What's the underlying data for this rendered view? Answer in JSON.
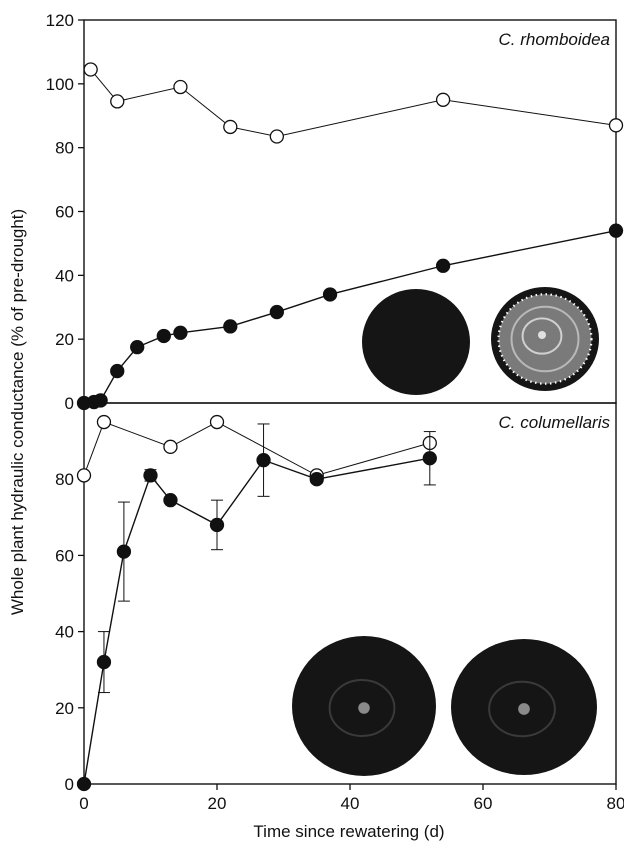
{
  "figure": {
    "ylabel": "Whole plant hydraulic conductance (% of pre-drought)",
    "xlabel": "Time since rewatering (d)",
    "colors": {
      "axis": "#111111",
      "line": "#111111",
      "filled_marker": "#111111",
      "open_marker_fill": "#ffffff",
      "stem_section": "#151515"
    }
  },
  "chart_data": [
    {
      "type": "line",
      "title": "C. rhomboidea",
      "panel": "top",
      "xlim": [
        0,
        80
      ],
      "ylim": [
        0,
        120
      ],
      "xticks": [],
      "yticks": [
        0,
        20,
        40,
        60,
        80,
        100,
        120
      ],
      "grid": false,
      "series": [
        {
          "marker": "open-circle",
          "points": [
            [
              1,
              104.5
            ],
            [
              5,
              94.5
            ],
            [
              14.5,
              99
            ],
            [
              22,
              86.5
            ],
            [
              29,
              83.5
            ],
            [
              54,
              95
            ],
            [
              80,
              87
            ]
          ]
        },
        {
          "marker": "filled-circle",
          "points": [
            [
              0,
              0
            ],
            [
              1.5,
              0.3
            ],
            [
              2.5,
              0.8
            ],
            [
              5,
              10
            ],
            [
              8,
              17.5
            ],
            [
              12,
              21
            ],
            [
              14.5,
              22
            ],
            [
              22,
              24
            ],
            [
              29,
              28.5
            ],
            [
              37,
              34
            ],
            [
              54,
              43
            ],
            [
              80,
              54
            ]
          ]
        }
      ],
      "insets": [
        {
          "name": "stem-section-dark",
          "rings": false,
          "dotted_ring": false
        },
        {
          "name": "stem-section-light-center",
          "rings": true,
          "dotted_ring": true
        }
      ]
    },
    {
      "type": "line",
      "title": "C. columellaris",
      "panel": "bottom",
      "xlim": [
        0,
        80
      ],
      "ylim": [
        0,
        100
      ],
      "xticks": [
        0,
        20,
        40,
        60,
        80
      ],
      "yticks": [
        0,
        20,
        40,
        60,
        80
      ],
      "grid": false,
      "series": [
        {
          "marker": "open-circle",
          "points": [
            [
              0,
              81
            ],
            [
              3,
              95
            ],
            [
              13,
              88.5
            ],
            [
              20,
              95
            ],
            [
              35,
              81
            ],
            [
              52,
              89.5
            ]
          ]
        },
        {
          "marker": "filled-circle",
          "points": [
            [
              0,
              0
            ],
            [
              3,
              32
            ],
            [
              6,
              61
            ],
            [
              10,
              81
            ],
            [
              13,
              74.5
            ],
            [
              20,
              68
            ],
            [
              27,
              85
            ],
            [
              35,
              80
            ],
            [
              52,
              85.5
            ]
          ],
          "error": [
            0,
            8,
            13,
            1.5,
            0,
            6.5,
            9.5,
            1,
            7
          ]
        }
      ],
      "insets": [
        {
          "name": "stem-section-dark",
          "rings": true,
          "dotted_ring": false
        },
        {
          "name": "stem-section-small-light-center",
          "rings": true,
          "dotted_ring": false
        }
      ]
    }
  ]
}
